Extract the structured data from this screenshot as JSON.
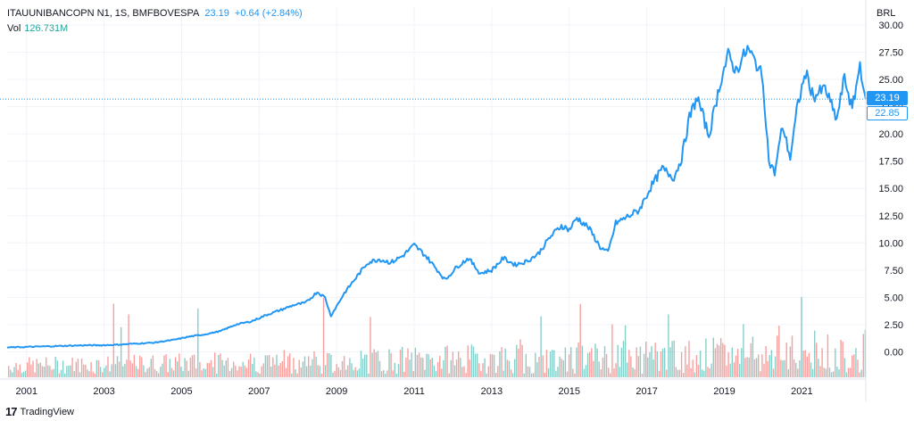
{
  "legend": {
    "title": "ITAUUNIBANCOPN N1, 1S, BMFBOVESPA",
    "last": "23.19",
    "change": "+0.64 (+2.84%)",
    "vol_label": "Vol",
    "vol_value": "126.731M"
  },
  "currency": "BRL",
  "badges": {
    "last": "23.19",
    "prev": "22.85"
  },
  "logo": {
    "mark": "17",
    "text": "TradingView"
  },
  "colors": {
    "line": "#2196f3",
    "legend_value": "#2196f3",
    "vol_value": "#26a69a",
    "vol_up": "#26a69a",
    "vol_down": "#ef5350",
    "grid": "#f0f3fa",
    "axis_text": "#131722"
  },
  "chart_data": {
    "type": "line",
    "title": "ITAUUNIBANCOPN N1, 1S, BMFBOVESPA",
    "xlabel": "",
    "ylabel": "",
    "ylim": [
      -2.5,
      30
    ],
    "xlim": [
      2000.5,
      2022.65
    ],
    "y_ticks": [
      "30.00",
      "27.50",
      "25.00",
      "22.50",
      "20.00",
      "17.50",
      "15.00",
      "12.50",
      "10.00",
      "7.50",
      "5.00",
      "2.50",
      "0.00"
    ],
    "y_tick_values": [
      30,
      27.5,
      25,
      22.5,
      20,
      17.5,
      15,
      12.5,
      10,
      7.5,
      5,
      2.5,
      0
    ],
    "x_ticks": [
      "2001",
      "2003",
      "2005",
      "2007",
      "2009",
      "2011",
      "2013",
      "2015",
      "2017",
      "2019",
      "2021"
    ],
    "x_tick_values": [
      2001,
      2003,
      2005,
      2007,
      2009,
      2011,
      2013,
      2015,
      2017,
      2019,
      2021
    ],
    "last_price_line": 23.19,
    "grid": true,
    "series": [
      {
        "name": "ITAUUNIBANCOPN N1",
        "x": [
          2000.5,
          2001.0,
          2001.5,
          2002.0,
          2002.5,
          2002.9,
          2003.3,
          2003.8,
          2004.3,
          2004.8,
          2005.2,
          2005.6,
          2006.0,
          2006.4,
          2006.8,
          2007.2,
          2007.6,
          2007.9,
          2008.2,
          2008.5,
          2008.7,
          2008.85,
          2009.0,
          2009.2,
          2009.5,
          2009.8,
          2010.1,
          2010.4,
          2010.7,
          2011.0,
          2011.3,
          2011.6,
          2011.8,
          2012.1,
          2012.4,
          2012.7,
          2013.0,
          2013.3,
          2013.6,
          2013.9,
          2014.2,
          2014.5,
          2014.8,
          2015.0,
          2015.2,
          2015.5,
          2015.8,
          2016.0,
          2016.2,
          2016.5,
          2016.8,
          2017.1,
          2017.4,
          2017.7,
          2017.9,
          2018.1,
          2018.3,
          2018.6,
          2018.9,
          2019.1,
          2019.3,
          2019.6,
          2019.9,
          2020.0,
          2020.15,
          2020.3,
          2020.5,
          2020.7,
          2020.9,
          2021.1,
          2021.3,
          2021.6,
          2021.9,
          2022.1,
          2022.3,
          2022.5,
          2022.65
        ],
        "values": [
          0.4,
          0.45,
          0.5,
          0.55,
          0.6,
          0.6,
          0.65,
          0.75,
          0.85,
          1.1,
          1.4,
          1.6,
          1.9,
          2.5,
          2.8,
          3.4,
          3.9,
          4.3,
          4.5,
          5.5,
          5.0,
          3.3,
          4.2,
          5.4,
          6.8,
          8.2,
          8.5,
          8.2,
          8.8,
          9.8,
          8.8,
          7.5,
          6.6,
          7.8,
          8.6,
          7.2,
          7.5,
          8.6,
          8.0,
          8.3,
          9.0,
          10.5,
          11.6,
          11.2,
          12.3,
          11.4,
          9.6,
          9.1,
          11.8,
          12.4,
          13.0,
          15.1,
          16.8,
          16.0,
          17.8,
          21.5,
          23.4,
          19.8,
          24.8,
          27.2,
          25.8,
          27.8,
          26.0,
          24.8,
          17.5,
          16.4,
          20.8,
          17.8,
          22.8,
          25.6,
          23.4,
          24.2,
          21.3,
          25.2,
          22.2,
          26.4,
          23.19
        ]
      }
    ],
    "volume": {
      "name": "Vol",
      "last": "126.731M"
    }
  }
}
